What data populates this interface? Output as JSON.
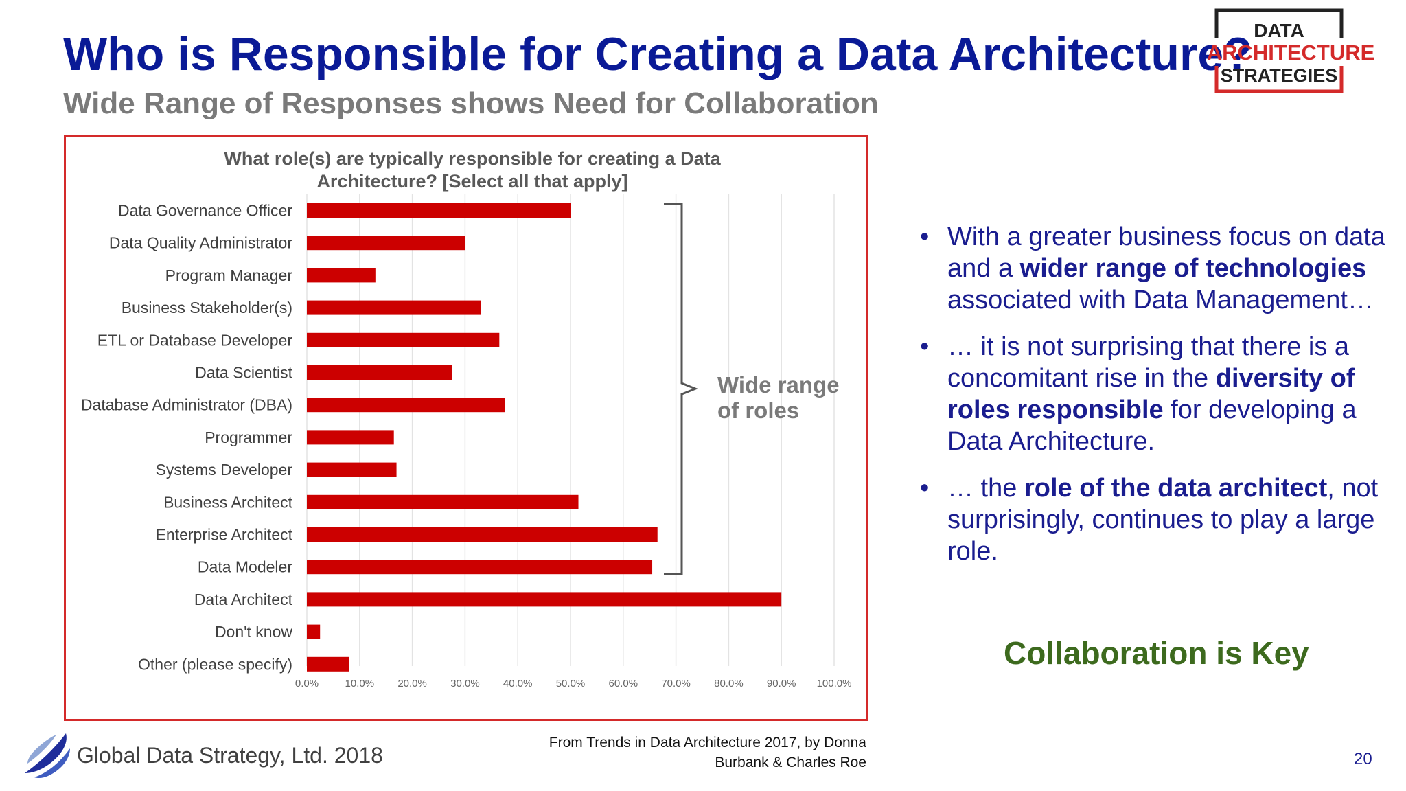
{
  "slide": {
    "title": "Who is Responsible for Creating a Data Architecture?",
    "subtitle": "Wide Range of Responses shows Need for Collaboration",
    "bullets": [
      [
        {
          "text": "With a greater business focus on data and a ",
          "bold": false
        },
        {
          "text": "wider range of technologies",
          "bold": true
        },
        {
          "text": " associated with Data Management…",
          "bold": false
        }
      ],
      [
        {
          "text": "… it is not surprising that there is a concomitant rise in the ",
          "bold": false
        },
        {
          "text": "diversity of roles responsible",
          "bold": true
        },
        {
          "text": " for developing a Data Architecture.",
          "bold": false
        }
      ],
      [
        {
          "text": "… the ",
          "bold": false
        },
        {
          "text": "role of the data architect",
          "bold": true
        },
        {
          "text": ", not surprisingly, continues to play a large role.",
          "bold": false
        }
      ]
    ],
    "key_message": "Collaboration is Key",
    "source_line1": "From Trends in Data Architecture 2017, by Donna",
    "source_line2": "Burbank & Charles Roe",
    "footer_company": "Global Data Strategy, Ltd. 2018",
    "page_number": "20"
  },
  "logo": {
    "line1": "DATA",
    "line2": "ARCHITECTURE",
    "line3": "STRATEGIES"
  },
  "colors": {
    "title": "#0a1a96",
    "bar": "#cc0000",
    "frame": "#d42a2a",
    "key": "#3d6a1e",
    "bullet_text": "#1a1d8f"
  },
  "chart_data": {
    "type": "bar",
    "orientation": "horizontal",
    "title_line1": "What role(s) are typically responsible for creating a Data",
    "title_line2": "Architecture? [Select all that apply]",
    "categories": [
      "Data Governance Officer",
      "Data Quality Administrator",
      "Program Manager",
      "Business Stakeholder(s)",
      "ETL or Database Developer",
      "Data Scientist",
      "Database Administrator (DBA)",
      "Programmer",
      "Systems Developer",
      "Business Architect",
      "Enterprise Architect",
      "Data Modeler",
      "Data Architect",
      "Don't know",
      "Other (please specify)"
    ],
    "values": [
      50.0,
      30.0,
      13.0,
      33.0,
      36.5,
      27.5,
      37.5,
      16.5,
      17.0,
      51.5,
      66.5,
      65.5,
      90.0,
      2.5,
      8.0
    ],
    "xlim": [
      0,
      100
    ],
    "xticks": [
      "0.0%",
      "10.0%",
      "20.0%",
      "30.0%",
      "40.0%",
      "50.0%",
      "60.0%",
      "70.0%",
      "80.0%",
      "90.0%",
      "100.0%"
    ],
    "grid": true,
    "annotation_line1": "Wide range",
    "annotation_line2": "of roles",
    "bracket_range": [
      0,
      11
    ]
  }
}
